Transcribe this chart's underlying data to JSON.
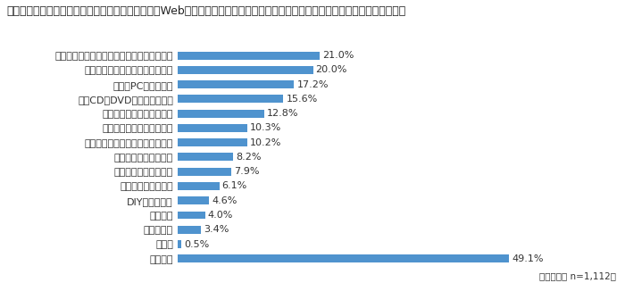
{
  "title": "次のうち、コロナ禍において、新たにオンライン（Webサイト・スマホアプリなど）で購入するようになったものはありますか？",
  "categories": [
    "特になし",
    "その他",
    "車・バイク",
    "花・植物",
    "DIY工具・塗料",
    "ペット・ペット用品",
    "スポーツ・ゴルフ用品",
    "キッズ・ベビー・玩具",
    "インテリア・寝具・キッチン用品",
    "お酒・ノンアルコール飲料",
    "コスメ・健康食品・医薬品",
    "本・CD・DVD・ゲーム・楽器",
    "家電・PC・通信機器",
    "食品・スイーツ・ソフトドリンク",
    "ファッション・インナー・ファッション小物"
  ],
  "values": [
    49.1,
    0.5,
    3.4,
    4.0,
    4.6,
    6.1,
    7.9,
    8.2,
    10.2,
    10.3,
    12.8,
    15.6,
    17.2,
    20.0,
    21.0
  ],
  "bar_color": "#4f93ce",
  "label_color": "#333333",
  "title_color": "#222222",
  "note": "（複数選択 n=1,112）",
  "title_fontsize": 9.0,
  "label_fontsize": 8.0,
  "value_fontsize": 8.0,
  "note_fontsize": 7.5,
  "xlim": [
    0,
    57
  ],
  "background_color": "#ffffff"
}
